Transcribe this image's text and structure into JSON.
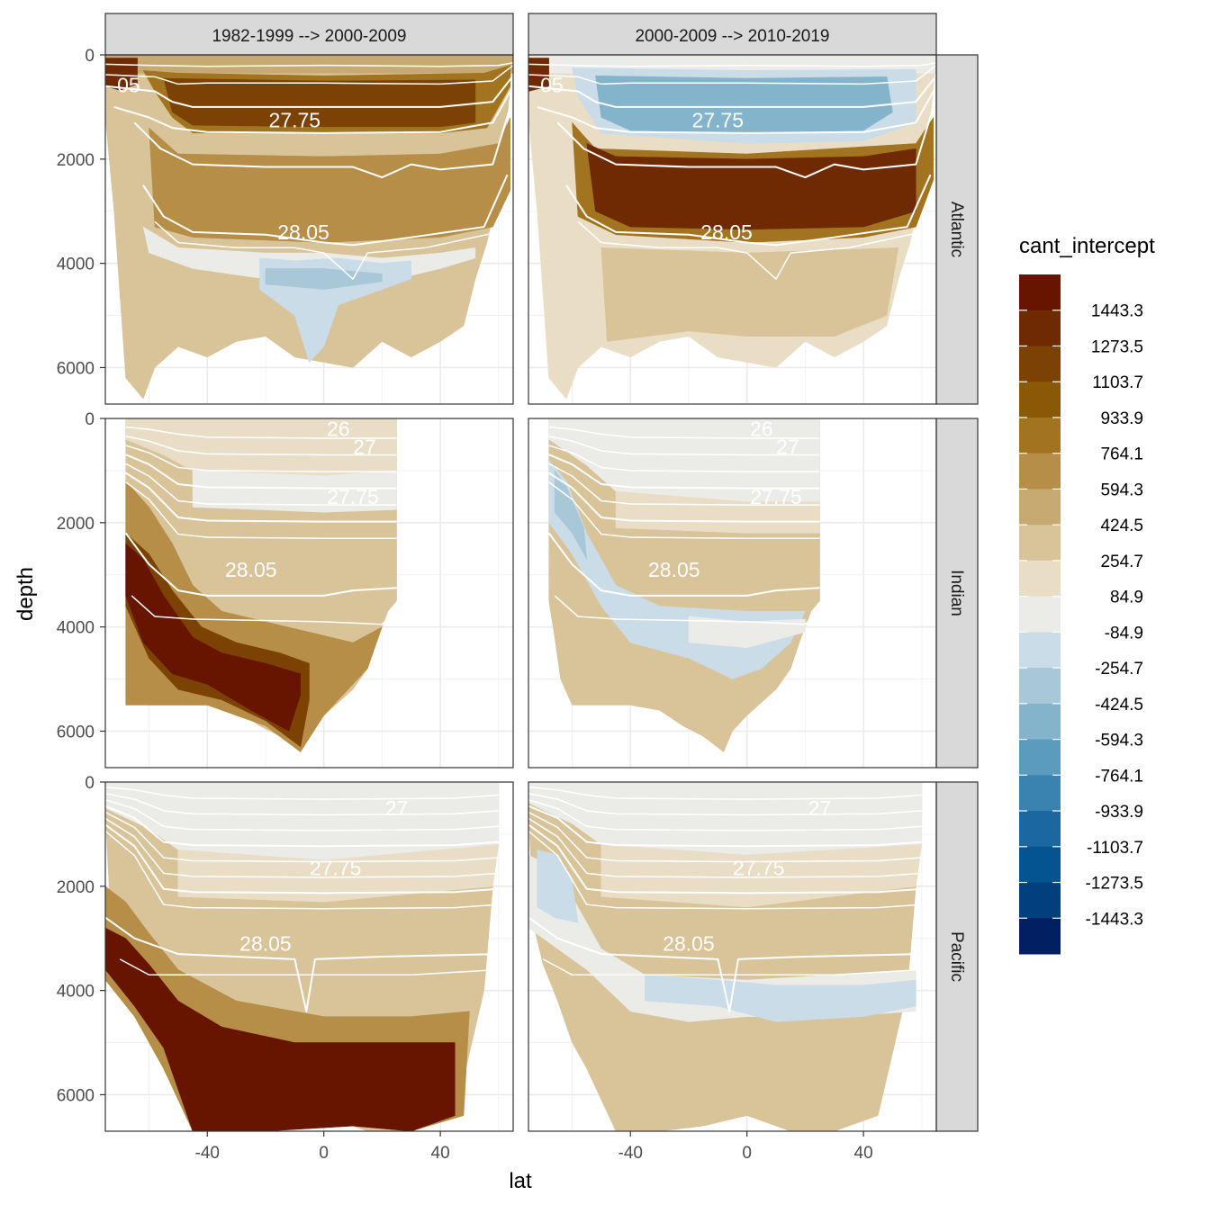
{
  "chart_data": {
    "type": "heatmap",
    "xlabel": "lat",
    "ylabel": "depth",
    "xlim": [
      -75,
      65
    ],
    "ylim": [
      6700,
      0
    ],
    "x_ticks": [
      -40,
      0,
      40
    ],
    "y_ticks": [
      0,
      2000,
      4000,
      6000
    ],
    "x_tick_labels": [
      "-40",
      "0",
      "40"
    ],
    "y_tick_labels": [
      "0",
      "2000",
      "4000",
      "6000"
    ],
    "y_reversed": true,
    "grid": true,
    "facet_cols": [
      {
        "label": "1982-1999 --> 2000-2009"
      },
      {
        "label": "2000-2009 --> 2010-2019"
      }
    ],
    "facet_rows": [
      {
        "label": "Atlantic"
      },
      {
        "label": "Indian"
      },
      {
        "label": "Pacific"
      }
    ],
    "legend": {
      "title": "cant_intercept",
      "position": "right",
      "labels": [
        "1443.3",
        "1273.5",
        "1103.7",
        "933.9",
        "764.1",
        "594.3",
        "424.5",
        "254.7",
        "84.9",
        "-84.9",
        "-254.7",
        "-424.5",
        "-594.3",
        "-764.1",
        "-933.9",
        "-1103.7",
        "-1273.5",
        "-1443.3"
      ],
      "colors": [
        "#671400",
        "#6f2a02",
        "#7c4203",
        "#8a5906",
        "#a2741f",
        "#b68e47",
        "#c7aa72",
        "#d9c49a",
        "#e9ddc6",
        "#ebebe8",
        "#c9dce7",
        "#a8c8d8",
        "#84b4cb",
        "#5b9cbe",
        "#3a82b0",
        "#1b67a1",
        "#045491",
        "#023f7e",
        "#021f63"
      ]
    },
    "isopycnal_labels": [
      "27.75",
      "28.05",
      "27",
      "26",
      "05"
    ],
    "panels": [
      {
        "row": "Atlantic",
        "col": "1982-1999 --> 2000-2009",
        "bands": [
          {
            "value": 1103.7,
            "lat": [
              -55,
              58
            ],
            "depth": [
              400,
              1200
            ]
          },
          {
            "value": 594.3,
            "lat": [
              -55,
              60
            ],
            "depth": [
              2000,
              3500
            ]
          },
          {
            "value": 254.7,
            "lat": [
              -75,
              65
            ],
            "depth": [
              0,
              6500
            ]
          },
          {
            "value": -254.7,
            "lat": [
              -25,
              25
            ],
            "depth": [
              3800,
              5400
            ]
          }
        ]
      },
      {
        "row": "Atlantic",
        "col": "2000-2009 --> 2010-2019",
        "bands": [
          {
            "value": -594.3,
            "lat": [
              -55,
              50
            ],
            "depth": [
              400,
              1600
            ]
          },
          {
            "value": 1273.5,
            "lat": [
              -55,
              60
            ],
            "depth": [
              2000,
              3400
            ]
          },
          {
            "value": 84.9,
            "lat": [
              -75,
              -50
            ],
            "depth": [
              1500,
              6500
            ]
          },
          {
            "value": 254.7,
            "lat": [
              -45,
              45
            ],
            "depth": [
              3800,
              5500
            ]
          }
        ]
      },
      {
        "row": "Indian",
        "col": "1982-1999 --> 2000-2009",
        "bands": [
          {
            "value": 254.7,
            "lat": [
              -70,
              25
            ],
            "depth": [
              0,
              3800
            ]
          },
          {
            "value": 1443.3,
            "lat": [
              -70,
              -5
            ],
            "depth": [
              2500,
              6300
            ]
          }
        ]
      },
      {
        "row": "Indian",
        "col": "2000-2009 --> 2010-2019",
        "bands": [
          {
            "value": -84.9,
            "lat": [
              -70,
              25
            ],
            "depth": [
              0,
              2000
            ]
          },
          {
            "value": -254.7,
            "lat": [
              -65,
              18
            ],
            "depth": [
              1000,
              5200
            ]
          },
          {
            "value": 254.7,
            "lat": [
              -70,
              -10
            ],
            "depth": [
              2500,
              6000
            ]
          }
        ]
      },
      {
        "row": "Pacific",
        "col": "1982-1999 --> 2000-2009",
        "bands": [
          {
            "value": 254.7,
            "lat": [
              -75,
              60
            ],
            "depth": [
              0,
              3800
            ]
          },
          {
            "value": 1443.3,
            "lat": [
              -75,
              50
            ],
            "depth": [
              3000,
              6700
            ]
          }
        ]
      },
      {
        "row": "Pacific",
        "col": "2000-2009 --> 2010-2019",
        "bands": [
          {
            "value": -84.9,
            "lat": [
              -75,
              60
            ],
            "depth": [
              0,
              1500
            ]
          },
          {
            "value": -254.7,
            "lat": [
              -70,
              58
            ],
            "depth": [
              1200,
              4500
            ]
          },
          {
            "value": 254.7,
            "lat": [
              -70,
              58
            ],
            "depth": [
              4000,
              6700
            ]
          }
        ]
      }
    ]
  }
}
